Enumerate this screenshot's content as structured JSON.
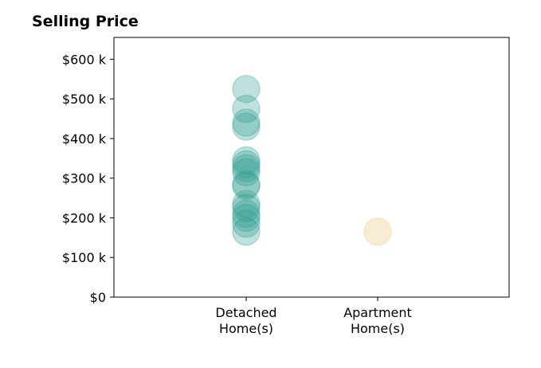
{
  "chart_data": {
    "type": "scatter",
    "title": "Selling Price",
    "xlabel": "",
    "ylabel": "",
    "categories": [
      [
        "Detached",
        "Home(s)"
      ],
      [
        "Apartment",
        "Home(s)"
      ]
    ],
    "ylim": [
      0,
      655
    ],
    "yticks": [
      0,
      100,
      200,
      300,
      400,
      500,
      600
    ],
    "ytick_labels": [
      "$0",
      "$100 k",
      "$200 k",
      "$300 k",
      "$400 k",
      "$500 k",
      "$600 k"
    ],
    "series": [
      {
        "category_index": 0,
        "color": "#2a9d8f",
        "opacity": 0.3,
        "values": [
          525,
          475,
          440,
          430,
          345,
          335,
          325,
          315,
          285,
          280,
          235,
          225,
          210,
          200,
          185,
          165
        ]
      },
      {
        "category_index": 1,
        "color": "#e9c46a",
        "opacity": 0.3,
        "values": [
          165
        ]
      }
    ],
    "grid": false,
    "legend": "none"
  }
}
